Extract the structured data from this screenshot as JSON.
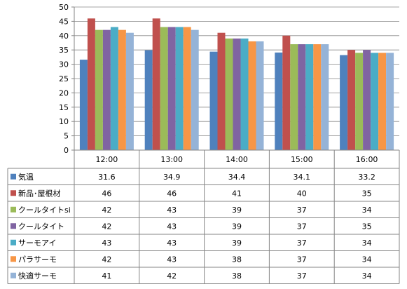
{
  "chart_data": {
    "type": "bar",
    "title": "",
    "xlabel": "",
    "ylabel": "",
    "ylim": [
      0,
      50
    ],
    "ytick_step": 5,
    "y_ticks": [
      "0",
      "5",
      "10",
      "15",
      "20",
      "25",
      "30",
      "35",
      "40",
      "45",
      "50"
    ],
    "grid": true,
    "legend": "data-table",
    "categories": [
      "12:00",
      "13:00",
      "14:00",
      "15:00",
      "16:00"
    ],
    "series": [
      {
        "name": "気温",
        "color": "#4F81BD",
        "values": [
          31.6,
          34.9,
          34.4,
          34.1,
          33.2
        ],
        "labels": [
          "31.6",
          "34.9",
          "34.4",
          "34.1",
          "33.2"
        ]
      },
      {
        "name": "新品･屋根材",
        "color": "#C0504D",
        "values": [
          46,
          46,
          41,
          40,
          35
        ],
        "labels": [
          "46",
          "46",
          "41",
          "40",
          "35"
        ]
      },
      {
        "name": "クールタイトsi",
        "color": "#9BBB59",
        "values": [
          42,
          43,
          39,
          37,
          34
        ],
        "labels": [
          "42",
          "43",
          "39",
          "37",
          "34"
        ]
      },
      {
        "name": "クールタイト",
        "color": "#8064A2",
        "values": [
          42,
          43,
          39,
          37,
          35
        ],
        "labels": [
          "42",
          "43",
          "39",
          "37",
          "35"
        ]
      },
      {
        "name": "サーモアイ",
        "color": "#4BACC6",
        "values": [
          43,
          43,
          39,
          37,
          34
        ],
        "labels": [
          "43",
          "43",
          "39",
          "37",
          "34"
        ]
      },
      {
        "name": "パラサーモ",
        "color": "#F79646",
        "values": [
          42,
          43,
          38,
          37,
          34
        ],
        "labels": [
          "42",
          "43",
          "38",
          "37",
          "34"
        ]
      },
      {
        "name": "快適サーモ",
        "color": "#95B3D7",
        "values": [
          41,
          42,
          38,
          37,
          34
        ],
        "labels": [
          "41",
          "42",
          "38",
          "37",
          "34"
        ]
      }
    ]
  }
}
